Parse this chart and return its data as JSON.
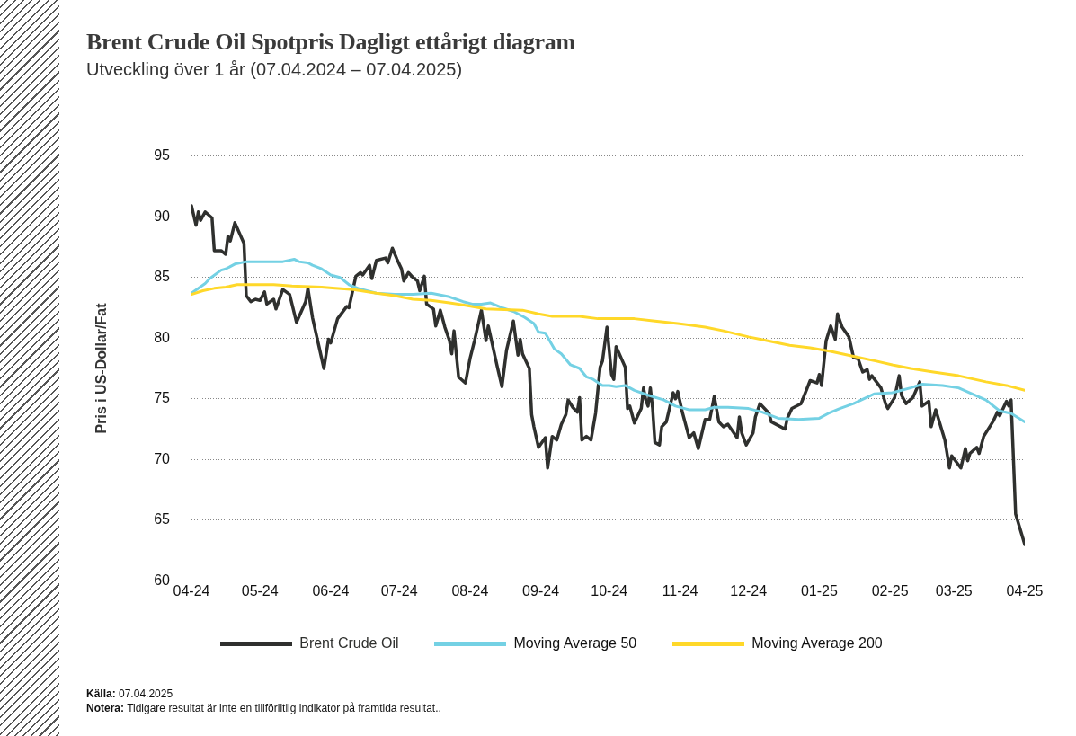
{
  "chart_data": {
    "type": "line",
    "title": "Brent Crude Oil Spotpris Dagligt ettårigt diagram",
    "subtitle": "Utveckling  över 1 år (07.04.2024 – 07.04.2025)",
    "ylabel": "Pris i US-Dollar/Fat",
    "annotations": [
      "Källa: 07.04.2025",
      "Notera: Tidigare  resultat är inte en tillförlitlig indikator på framtida resultat.."
    ],
    "xlim": [
      "2024-04-07",
      "2025-04-07"
    ],
    "xticks": [
      {
        "value": "2024-04-07",
        "label": "04-24"
      },
      {
        "value": "2024-05-07",
        "label": "05-24"
      },
      {
        "value": "2024-06-07",
        "label": "06-24"
      },
      {
        "value": "2024-07-07",
        "label": "07-24"
      },
      {
        "value": "2024-08-07",
        "label": "08-24"
      },
      {
        "value": "2024-09-07",
        "label": "09-24"
      },
      {
        "value": "2024-10-07",
        "label": "10-24"
      },
      {
        "value": "2024-11-07",
        "label": "11-24"
      },
      {
        "value": "2024-12-07",
        "label": "12-24"
      },
      {
        "value": "2025-01-07",
        "label": "01-25"
      },
      {
        "value": "2025-02-07",
        "label": "02-25"
      },
      {
        "value": "2025-03-07",
        "label": "03-25"
      },
      {
        "value": "2025-04-07",
        "label": "04-25"
      }
    ],
    "ylim": [
      60,
      95
    ],
    "yticks": [
      60,
      65,
      70,
      75,
      80,
      85,
      90,
      95
    ],
    "grid": "y",
    "legend": "bottom",
    "marker": "none",
    "line_style": "solid",
    "series": [
      {
        "name": "Brent Crude Oil",
        "color": "#2f302e",
        "x": [
          "2024-04-07",
          "2024-04-09",
          "2024-04-10",
          "2024-04-11",
          "2024-04-13",
          "2024-04-16",
          "2024-04-17",
          "2024-04-20",
          "2024-04-22",
          "2024-04-23",
          "2024-04-24",
          "2024-04-26",
          "2024-04-30",
          "2024-05-01",
          "2024-05-03",
          "2024-05-05",
          "2024-05-07",
          "2024-05-09",
          "2024-05-10",
          "2024-05-13",
          "2024-05-14",
          "2024-05-17",
          "2024-05-20",
          "2024-05-23",
          "2024-05-27",
          "2024-05-28",
          "2024-05-30",
          "2024-06-04",
          "2024-06-06",
          "2024-06-07",
          "2024-06-10",
          "2024-06-14",
          "2024-06-15",
          "2024-06-18",
          "2024-06-20",
          "2024-06-21",
          "2024-06-24",
          "2024-06-25",
          "2024-06-27",
          "2024-07-01",
          "2024-07-02",
          "2024-07-04",
          "2024-07-06",
          "2024-07-08",
          "2024-07-09",
          "2024-07-11",
          "2024-07-13",
          "2024-07-15",
          "2024-07-16",
          "2024-07-18",
          "2024-07-19",
          "2024-07-22",
          "2024-07-23",
          "2024-07-25",
          "2024-07-27",
          "2024-07-29",
          "2024-07-30",
          "2024-07-31",
          "2024-08-02",
          "2024-08-05",
          "2024-08-07",
          "2024-08-09",
          "2024-08-12",
          "2024-08-14",
          "2024-08-15",
          "2024-08-19",
          "2024-08-21",
          "2024-08-23",
          "2024-08-26",
          "2024-08-28",
          "2024-08-29",
          "2024-08-30",
          "2024-09-02",
          "2024-09-03",
          "2024-09-04",
          "2024-09-06",
          "2024-09-09",
          "2024-09-10",
          "2024-09-12",
          "2024-09-14",
          "2024-09-16",
          "2024-09-18",
          "2024-09-19",
          "2024-09-21",
          "2024-09-23",
          "2024-09-24",
          "2024-09-25",
          "2024-09-27",
          "2024-09-29",
          "2024-10-01",
          "2024-10-03",
          "2024-10-04",
          "2024-10-06",
          "2024-10-08",
          "2024-10-09",
          "2024-10-10",
          "2024-10-14",
          "2024-10-15",
          "2024-10-16",
          "2024-10-18",
          "2024-10-21",
          "2024-10-22",
          "2024-10-23",
          "2024-10-24",
          "2024-10-25",
          "2024-10-26",
          "2024-10-27",
          "2024-10-29",
          "2024-10-30",
          "2024-11-01",
          "2024-11-04",
          "2024-11-05",
          "2024-11-06",
          "2024-11-08",
          "2024-11-11",
          "2024-11-13",
          "2024-11-15",
          "2024-11-18",
          "2024-11-20",
          "2024-11-22",
          "2024-11-24",
          "2024-11-26",
          "2024-11-28",
          "2024-12-02",
          "2024-12-03",
          "2024-12-04",
          "2024-12-06",
          "2024-12-09",
          "2024-12-10",
          "2024-12-12",
          "2024-12-16",
          "2024-12-17",
          "2024-12-19",
          "2024-12-23",
          "2024-12-24",
          "2024-12-26",
          "2024-12-30",
          "2025-01-03",
          "2025-01-06",
          "2025-01-07",
          "2025-01-08",
          "2025-01-10",
          "2025-01-12",
          "2025-01-14",
          "2025-01-15",
          "2025-01-17",
          "2025-01-20",
          "2025-01-22",
          "2025-01-24",
          "2025-01-26",
          "2025-01-28",
          "2025-01-29",
          "2025-01-30",
          "2025-02-03",
          "2025-02-05",
          "2025-02-06",
          "2025-02-09",
          "2025-02-11",
          "2025-02-12",
          "2025-02-14",
          "2025-02-17",
          "2025-02-20",
          "2025-02-21",
          "2025-02-24",
          "2025-02-25",
          "2025-02-27",
          "2025-03-03",
          "2025-03-05",
          "2025-03-06",
          "2025-03-10",
          "2025-03-12",
          "2025-03-13",
          "2025-03-14",
          "2025-03-17",
          "2025-03-18",
          "2025-03-20",
          "2025-03-24",
          "2025-03-26",
          "2025-03-27",
          "2025-03-30",
          "2025-03-31",
          "2025-04-01",
          "2025-04-03",
          "2025-04-07"
        ],
        "values": [
          90.9,
          89.3,
          90.4,
          89.7,
          90.4,
          89.9,
          87.2,
          87.2,
          86.9,
          88.4,
          88.0,
          89.5,
          87.8,
          83.5,
          83.0,
          83.2,
          83.1,
          83.8,
          82.8,
          83.2,
          82.4,
          84.0,
          83.6,
          81.3,
          83.0,
          84.1,
          81.7,
          77.5,
          79.9,
          79.6,
          81.6,
          82.6,
          82.5,
          85.1,
          85.4,
          85.2,
          86.0,
          84.9,
          86.4,
          86.6,
          86.2,
          87.4,
          86.5,
          85.7,
          84.7,
          85.4,
          85.0,
          84.7,
          83.9,
          85.1,
          82.8,
          82.4,
          81.0,
          82.3,
          80.9,
          79.8,
          78.7,
          80.6,
          76.8,
          76.3,
          78.3,
          79.8,
          82.3,
          79.8,
          81.0,
          77.6,
          76.0,
          79.0,
          81.4,
          78.6,
          79.9,
          78.7,
          77.5,
          73.7,
          72.7,
          71.0,
          71.8,
          69.3,
          71.9,
          71.6,
          72.9,
          73.7,
          74.9,
          74.3,
          73.9,
          75.1,
          71.6,
          71.9,
          71.6,
          73.8,
          77.6,
          78.1,
          80.9,
          77.0,
          76.6,
          79.3,
          77.6,
          74.2,
          74.4,
          73.0,
          74.2,
          75.9,
          74.9,
          74.4,
          75.9,
          74.2,
          71.4,
          71.2,
          72.7,
          73.1,
          75.5,
          75.0,
          75.6,
          73.9,
          71.8,
          72.2,
          70.9,
          73.3,
          73.3,
          75.2,
          73.1,
          72.7,
          72.9,
          71.8,
          73.5,
          72.2,
          71.2,
          72.2,
          73.5,
          74.6,
          73.8,
          73.1,
          72.9,
          72.5,
          73.4,
          74.2,
          74.6,
          76.5,
          76.3,
          77.0,
          76.1,
          79.8,
          81.0,
          79.9,
          82.0,
          80.9,
          80.1,
          78.4,
          78.3,
          77.2,
          77.4,
          76.6,
          76.9,
          75.9,
          74.6,
          74.2,
          75.1,
          76.9,
          75.3,
          74.6,
          75.1,
          76.4,
          74.4,
          74.8,
          72.7,
          74.1,
          71.6,
          69.3,
          70.3,
          69.3,
          70.9,
          69.9,
          70.5,
          71.0,
          70.5,
          71.9,
          73.1,
          73.9,
          73.6,
          74.8,
          74.4,
          74.9,
          65.5,
          63.0
        ]
      },
      {
        "name": "Moving Average 50",
        "color": "#74d1e4",
        "x": [
          "2024-04-07",
          "2024-04-13",
          "2024-04-15",
          "2024-04-20",
          "2024-04-22",
          "2024-04-26",
          "2024-05-01",
          "2024-05-17",
          "2024-05-22",
          "2024-05-24",
          "2024-05-28",
          "2024-05-30",
          "2024-06-03",
          "2024-06-07",
          "2024-06-11",
          "2024-06-15",
          "2024-06-19",
          "2024-06-27",
          "2024-07-05",
          "2024-07-13",
          "2024-07-21",
          "2024-07-29",
          "2024-08-04",
          "2024-08-08",
          "2024-08-12",
          "2024-08-16",
          "2024-08-21",
          "2024-08-26",
          "2024-08-31",
          "2024-09-04",
          "2024-09-06",
          "2024-09-09",
          "2024-09-13",
          "2024-09-16",
          "2024-09-20",
          "2024-09-24",
          "2024-09-27",
          "2024-09-30",
          "2024-10-04",
          "2024-10-07",
          "2024-10-10",
          "2024-10-14",
          "2024-10-18",
          "2024-10-24",
          "2024-10-31",
          "2024-11-05",
          "2024-11-11",
          "2024-11-18",
          "2024-11-22",
          "2024-11-28",
          "2024-12-07",
          "2024-12-13",
          "2024-12-20",
          "2024-12-29",
          "2025-01-07",
          "2025-01-11",
          "2025-01-16",
          "2025-01-22",
          "2025-01-31",
          "2025-02-08",
          "2025-02-16",
          "2025-02-21",
          "2025-03-02",
          "2025-03-09",
          "2025-03-15",
          "2025-03-21",
          "2025-03-27",
          "2025-04-01",
          "2025-04-07"
        ],
        "values": [
          83.7,
          84.5,
          84.9,
          85.6,
          85.7,
          86.1,
          86.3,
          86.3,
          86.5,
          86.3,
          86.2,
          86.0,
          85.7,
          85.2,
          85.0,
          84.4,
          84.1,
          83.7,
          83.6,
          83.6,
          83.7,
          83.4,
          83.0,
          82.8,
          82.8,
          82.9,
          82.5,
          82.2,
          81.7,
          81.2,
          80.5,
          80.4,
          79.1,
          78.7,
          77.8,
          77.5,
          76.8,
          76.6,
          76.1,
          76.1,
          76.0,
          76.1,
          75.7,
          75.3,
          74.9,
          74.4,
          74.1,
          74.1,
          74.3,
          74.3,
          74.2,
          73.9,
          73.4,
          73.3,
          73.4,
          73.8,
          74.2,
          74.6,
          75.4,
          75.5,
          75.9,
          76.2,
          76.1,
          75.9,
          75.4,
          74.9,
          74.0,
          73.8,
          73.1
        ]
      },
      {
        "name": "Moving Average 200",
        "color": "#ffd829",
        "x": [
          "2024-04-07",
          "2024-04-12",
          "2024-04-17",
          "2024-04-22",
          "2024-04-27",
          "2024-05-13",
          "2024-05-21",
          "2024-06-03",
          "2024-06-09",
          "2024-06-17",
          "2024-06-27",
          "2024-07-05",
          "2024-07-13",
          "2024-07-21",
          "2024-07-29",
          "2024-08-05",
          "2024-08-14",
          "2024-08-30",
          "2024-09-06",
          "2024-09-12",
          "2024-09-24",
          "2024-10-02",
          "2024-10-18",
          "2024-10-27",
          "2024-11-06",
          "2024-11-18",
          "2024-11-26",
          "2024-12-07",
          "2024-12-15",
          "2024-12-25",
          "2025-01-03",
          "2025-01-12",
          "2025-01-22",
          "2025-02-01",
          "2025-02-08",
          "2025-02-16",
          "2025-02-26",
          "2025-03-09",
          "2025-03-21",
          "2025-03-30",
          "2025-04-07"
        ],
        "values": [
          83.6,
          83.9,
          84.1,
          84.2,
          84.4,
          84.4,
          84.3,
          84.2,
          84.1,
          84.0,
          83.7,
          83.5,
          83.2,
          83.1,
          82.9,
          82.7,
          82.4,
          82.3,
          82.0,
          81.8,
          81.8,
          81.6,
          81.6,
          81.4,
          81.2,
          80.9,
          80.6,
          80.1,
          79.8,
          79.4,
          79.2,
          78.9,
          78.5,
          78.1,
          77.8,
          77.5,
          77.2,
          76.9,
          76.4,
          76.1,
          75.7
        ]
      }
    ]
  }
}
